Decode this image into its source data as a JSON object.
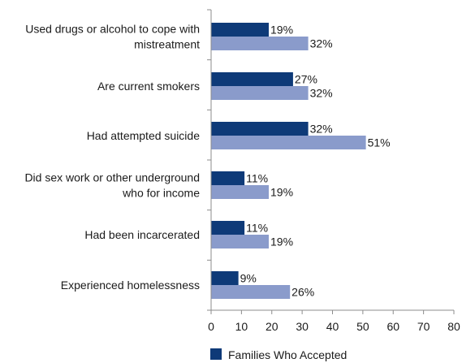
{
  "chart_data": {
    "type": "bar",
    "orientation": "horizontal",
    "categories": [
      [
        "Used drugs or alcohol to cope with",
        "mistreatment"
      ],
      [
        "Are current smokers"
      ],
      [
        "Had attempted suicide"
      ],
      [
        "Did sex work or other underground",
        "who for income"
      ],
      [
        "Had been incarcerated"
      ],
      [
        "Experienced homelessness"
      ]
    ],
    "series": [
      {
        "name": "Families Who Accepted",
        "color": "#0e3a78",
        "values": [
          19,
          27,
          32,
          11,
          11,
          9
        ],
        "labels": [
          "19%",
          "27%",
          "32%",
          "11%",
          "11%",
          "9%"
        ]
      },
      {
        "color": "#8a9bcb",
        "values": [
          32,
          32,
          51,
          19,
          19,
          26
        ],
        "labels": [
          "32%",
          "32%",
          "51%",
          "19%",
          "19%",
          "26%"
        ]
      }
    ],
    "x_ticks": [
      "0",
      "10",
      "20",
      "30",
      "40",
      "50",
      "60",
      "70",
      "80"
    ],
    "xlim": [
      0,
      80
    ],
    "grid": false,
    "legend_position": "bottom"
  }
}
